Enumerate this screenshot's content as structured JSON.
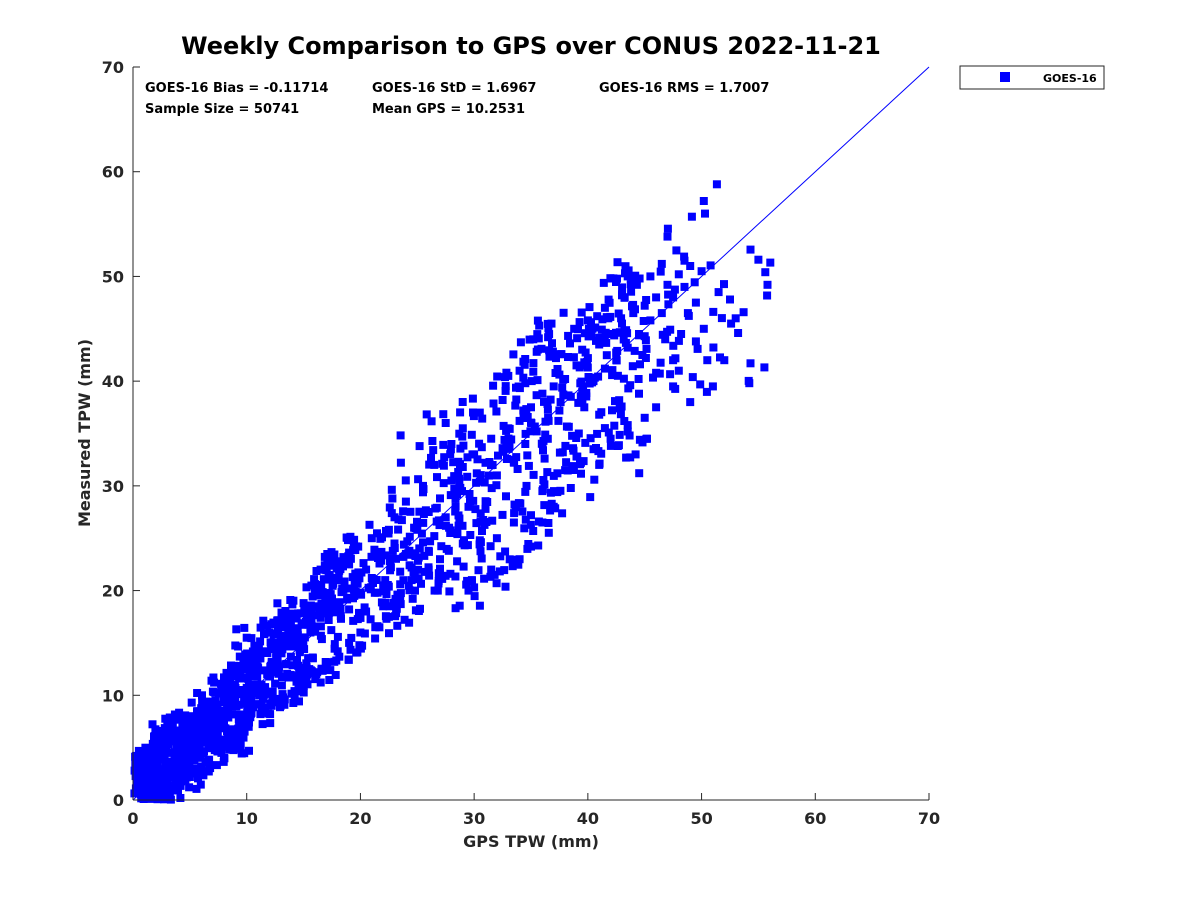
{
  "chart_data": {
    "type": "scatter",
    "title": "Weekly Comparison to GPS over CONUS 2022-11-21",
    "xlabel": "GPS TPW (mm)",
    "ylabel": "Measured TPW (mm)",
    "xlim": [
      0,
      70
    ],
    "ylim": [
      0,
      70
    ],
    "xticks": [
      "0",
      "10",
      "20",
      "30",
      "40",
      "50",
      "60",
      "70"
    ],
    "yticks": [
      "0",
      "10",
      "20",
      "30",
      "40",
      "50",
      "60",
      "70"
    ],
    "grid": false,
    "legend_position": "top-right-outside",
    "reference_line": {
      "name": "1:1 line",
      "x": [
        0,
        70
      ],
      "y": [
        0,
        70
      ],
      "color": "#0000ff"
    },
    "stats": {
      "bias": "GOES-16 Bias = -0.11714",
      "std": "GOES-16 StD = 1.6967",
      "rms": "GOES-16 RMS = 1.7007",
      "sample_size": "Sample Size = 50741",
      "mean_gps": "Mean GPS = 10.2531"
    },
    "series": [
      {
        "name": "GOES-16",
        "color": "#0000ff",
        "marker": "square",
        "points": [
          [
            0.2,
            3.5
          ],
          [
            0.5,
            1.2
          ],
          [
            0.8,
            2.0
          ],
          [
            1.0,
            0.4
          ],
          [
            1.2,
            1.5
          ],
          [
            1.5,
            3.0
          ],
          [
            1.8,
            2.2
          ],
          [
            2.0,
            0.8
          ],
          [
            2.2,
            4.0
          ],
          [
            2.5,
            2.5
          ],
          [
            2.8,
            1.8
          ],
          [
            3.0,
            3.2
          ],
          [
            3.3,
            4.5
          ],
          [
            3.6,
            2.9
          ],
          [
            4.0,
            3.8
          ],
          [
            4.2,
            5.5
          ],
          [
            4.5,
            4.2
          ],
          [
            4.8,
            3.5
          ],
          [
            5.0,
            5.0
          ],
          [
            5.3,
            6.2
          ],
          [
            5.5,
            4.8
          ],
          [
            5.8,
            5.6
          ],
          [
            6.0,
            6.8
          ],
          [
            6.3,
            5.9
          ],
          [
            6.6,
            7.2
          ],
          [
            7.0,
            6.5
          ],
          [
            7.3,
            7.8
          ],
          [
            7.6,
            8.4
          ],
          [
            8.0,
            7.5
          ],
          [
            8.3,
            9.0
          ],
          [
            8.7,
            8.2
          ],
          [
            9.0,
            9.6
          ],
          [
            9.4,
            10.5
          ],
          [
            9.8,
            9.2
          ],
          [
            10.2,
            11.0
          ],
          [
            10.5,
            10.3
          ],
          [
            11.0,
            12.6
          ],
          [
            11.3,
            10.8
          ],
          [
            11.8,
            12.0
          ],
          [
            12.2,
            13.2
          ],
          [
            12.6,
            12.4
          ],
          [
            13.0,
            14.5
          ],
          [
            13.5,
            13.0
          ],
          [
            14.0,
            15.2
          ],
          [
            14.3,
            16.4
          ],
          [
            14.8,
            14.6
          ],
          [
            15.2,
            17.0
          ],
          [
            15.6,
            16.0
          ],
          [
            16.0,
            18.5
          ],
          [
            16.5,
            17.4
          ],
          [
            17.0,
            19.5
          ],
          [
            17.5,
            18.8
          ],
          [
            18.0,
            21.0
          ],
          [
            18.4,
            20.2
          ],
          [
            19.0,
            22.5
          ],
          [
            19.5,
            20.8
          ],
          [
            20.0,
            19.8
          ],
          [
            20.5,
            22.0
          ],
          [
            21.0,
            21.2
          ],
          [
            21.5,
            23.4
          ],
          [
            22.0,
            20.5
          ],
          [
            22.6,
            22.8
          ],
          [
            23.0,
            24.5
          ],
          [
            23.5,
            21.8
          ],
          [
            24.0,
            23.5
          ],
          [
            24.5,
            22.2
          ],
          [
            25.0,
            25.8
          ],
          [
            25.5,
            24.6
          ],
          [
            26.0,
            27.5
          ],
          [
            26.5,
            25.2
          ],
          [
            27.0,
            28.8
          ],
          [
            27.5,
            27.0
          ],
          [
            28.0,
            30.5
          ],
          [
            28.5,
            29.2
          ],
          [
            29.0,
            31.8
          ],
          [
            29.5,
            28.0
          ],
          [
            30.0,
            33.0
          ],
          [
            30.5,
            30.4
          ],
          [
            31.0,
            32.2
          ],
          [
            31.5,
            34.5
          ],
          [
            32.0,
            31.0
          ],
          [
            32.5,
            33.6
          ],
          [
            33.0,
            35.5
          ],
          [
            33.5,
            32.5
          ],
          [
            34.0,
            36.2
          ],
          [
            34.5,
            34.0
          ],
          [
            35.0,
            37.5
          ],
          [
            35.5,
            35.2
          ],
          [
            36.0,
            38.8
          ],
          [
            36.5,
            36.5
          ],
          [
            37.0,
            39.5
          ],
          [
            37.5,
            37.2
          ],
          [
            38.0,
            40.2
          ],
          [
            38.5,
            38.5
          ],
          [
            39.0,
            41.5
          ],
          [
            39.5,
            39.0
          ],
          [
            40.0,
            42.2
          ],
          [
            40.5,
            40.0
          ],
          [
            41.0,
            43.5
          ],
          [
            41.5,
            41.2
          ],
          [
            42.0,
            44.5
          ],
          [
            42.5,
            42.0
          ],
          [
            43.0,
            45.5
          ],
          [
            43.5,
            43.2
          ],
          [
            44.0,
            46.5
          ],
          [
            44.5,
            44.5
          ],
          [
            45.0,
            47.2
          ],
          [
            45.5,
            45.8
          ],
          [
            46.0,
            48.0
          ],
          [
            46.5,
            46.5
          ],
          [
            47.0,
            49.2
          ],
          [
            47.5,
            48.0
          ],
          [
            48.0,
            50.2
          ],
          [
            48.5,
            49.0
          ],
          [
            49.0,
            51.0
          ],
          [
            49.5,
            47.5
          ],
          [
            50.0,
            50.5
          ],
          [
            50.2,
            57.2
          ],
          [
            50.3,
            56.0
          ],
          [
            47.0,
            53.8
          ],
          [
            55.0,
            51.6
          ],
          [
            55.6,
            50.4
          ],
          [
            55.8,
            49.2
          ],
          [
            54.3,
            41.7
          ],
          [
            54.2,
            39.8
          ],
          [
            52.6,
            45.5
          ],
          [
            52.5,
            47.8
          ],
          [
            51.0,
            39.5
          ],
          [
            49.0,
            38.0
          ],
          [
            25.2,
            33.8
          ],
          [
            27.5,
            36.0
          ],
          [
            30.0,
            20.3
          ],
          [
            29.5,
            20.0
          ],
          [
            35.0,
            24.2
          ],
          [
            34.0,
            23.0
          ],
          [
            31.5,
            22.0
          ],
          [
            28.5,
            22.8
          ],
          [
            22.0,
            18.5
          ],
          [
            20.5,
            18.0
          ],
          [
            14.5,
            11.8
          ],
          [
            15.5,
            12.5
          ],
          [
            10.0,
            15.5
          ],
          [
            9.0,
            5.5
          ],
          [
            8.5,
            6.0
          ],
          [
            7.5,
            4.8
          ],
          [
            6.0,
            3.2
          ],
          [
            5.0,
            2.2
          ],
          [
            4.0,
            1.5
          ],
          [
            3.0,
            0.6
          ],
          [
            2.0,
            0.2
          ],
          [
            1.0,
            2.8
          ],
          [
            1.5,
            0.6
          ],
          [
            2.5,
            6.6
          ],
          [
            3.5,
            7.0
          ],
          [
            4.5,
            7.6
          ],
          [
            6.5,
            9.4
          ],
          [
            8.0,
            10.8
          ],
          [
            9.5,
            12.8
          ],
          [
            12.0,
            16.0
          ],
          [
            13.5,
            17.6
          ],
          [
            16.5,
            22.0
          ],
          [
            18.5,
            23.2
          ],
          [
            19.0,
            18.2
          ],
          [
            21.5,
            19.8
          ],
          [
            23.5,
            20.6
          ],
          [
            24.5,
            21.0
          ],
          [
            26.0,
            23.8
          ],
          [
            27.8,
            26.0
          ],
          [
            29.0,
            24.5
          ],
          [
            31.0,
            27.8
          ],
          [
            32.8,
            29.0
          ],
          [
            34.6,
            30.0
          ],
          [
            36.2,
            32.6
          ],
          [
            37.8,
            33.2
          ],
          [
            39.2,
            35.0
          ],
          [
            41.0,
            36.8
          ],
          [
            42.8,
            37.4
          ],
          [
            44.5,
            38.8
          ],
          [
            46.0,
            40.8
          ],
          [
            47.5,
            42.0
          ],
          [
            48.2,
            44.5
          ],
          [
            49.5,
            43.8
          ],
          [
            44.0,
            49.5
          ],
          [
            45.5,
            50.0
          ],
          [
            46.5,
            51.2
          ],
          [
            48.5,
            51.5
          ],
          [
            43.0,
            48.2
          ],
          [
            41.5,
            47.0
          ],
          [
            40.0,
            45.8
          ],
          [
            39.5,
            43.0
          ],
          [
            36.5,
            44.2
          ],
          [
            35.5,
            42.8
          ],
          [
            34.0,
            41.0
          ],
          [
            33.0,
            40.5
          ],
          [
            32.5,
            38.2
          ],
          [
            30.5,
            37.0
          ],
          [
            29.0,
            35.5
          ],
          [
            28.0,
            34.0
          ],
          [
            26.5,
            32.0
          ],
          [
            25.5,
            30.0
          ],
          [
            24.0,
            28.5
          ],
          [
            23.0,
            27.0
          ],
          [
            22.5,
            25.8
          ],
          [
            21.0,
            25.0
          ],
          [
            19.8,
            24.2
          ],
          [
            18.0,
            22.8
          ],
          [
            17.2,
            21.5
          ],
          [
            16.0,
            20.2
          ],
          [
            15.0,
            18.8
          ],
          [
            14.0,
            17.8
          ],
          [
            13.0,
            16.5
          ],
          [
            12.5,
            15.0
          ],
          [
            11.5,
            14.2
          ],
          [
            10.8,
            13.5
          ],
          [
            10.0,
            12.8
          ],
          [
            9.2,
            11.8
          ],
          [
            8.8,
            11.0
          ],
          [
            7.8,
            10.2
          ],
          [
            7.0,
            9.2
          ],
          [
            6.2,
            8.2
          ],
          [
            5.6,
            7.6
          ],
          [
            4.8,
            6.8
          ],
          [
            4.0,
            6.2
          ],
          [
            3.2,
            5.6
          ],
          [
            2.6,
            5.0
          ],
          [
            1.8,
            4.6
          ],
          [
            1.2,
            4.2
          ],
          [
            0.8,
            3.8
          ],
          [
            0.4,
            2.6
          ],
          [
            0.3,
            1.0
          ],
          [
            38.0,
            31.5
          ],
          [
            39.0,
            32.8
          ],
          [
            40.5,
            33.5
          ],
          [
            42.0,
            34.5
          ],
          [
            43.5,
            35.8
          ],
          [
            45.0,
            36.5
          ],
          [
            46.0,
            37.5
          ],
          [
            47.5,
            39.5
          ],
          [
            48.0,
            41.0
          ],
          [
            50.5,
            42.0
          ],
          [
            37.0,
            28.0
          ],
          [
            36.0,
            29.5
          ],
          [
            35.0,
            27.2
          ],
          [
            33.5,
            26.5
          ],
          [
            32.0,
            25.0
          ],
          [
            30.5,
            24.8
          ],
          [
            28.5,
            25.5
          ],
          [
            27.0,
            23.0
          ],
          [
            26.0,
            22.0
          ],
          [
            24.8,
            20.0
          ],
          [
            23.5,
            19.0
          ],
          [
            22.5,
            17.5
          ],
          [
            21.5,
            16.6
          ],
          [
            20.0,
            16.0
          ],
          [
            19.0,
            15.0
          ],
          [
            18.0,
            14.2
          ],
          [
            17.0,
            13.0
          ],
          [
            16.2,
            12.2
          ],
          [
            15.0,
            11.2
          ],
          [
            14.2,
            10.4
          ],
          [
            13.2,
            9.8
          ],
          [
            12.2,
            9.0
          ],
          [
            11.2,
            8.2
          ],
          [
            10.2,
            7.4
          ],
          [
            9.4,
            6.8
          ],
          [
            8.6,
            6.2
          ],
          [
            7.8,
            5.6
          ],
          [
            7.0,
            5.0
          ],
          [
            6.2,
            4.4
          ],
          [
            5.4,
            3.8
          ],
          [
            4.6,
            3.0
          ],
          [
            3.8,
            2.4
          ],
          [
            3.0,
            1.8
          ],
          [
            2.2,
            1.2
          ],
          [
            1.6,
            0.9
          ],
          [
            0.9,
            0.5
          ],
          [
            43.5,
            50.0
          ],
          [
            42.0,
            49.8
          ],
          [
            41.8,
            46.0
          ],
          [
            40.2,
            44.5
          ],
          [
            38.8,
            45.0
          ],
          [
            37.2,
            42.2
          ],
          [
            36.8,
            45.5
          ],
          [
            35.2,
            44.0
          ],
          [
            34.5,
            39.8
          ],
          [
            44.8,
            42.5
          ],
          [
            46.8,
            44.0
          ],
          [
            48.8,
            46.5
          ],
          [
            50.2,
            45.0
          ],
          [
            51.5,
            48.5
          ],
          [
            52.0,
            42.0
          ],
          [
            53.0,
            46.0
          ],
          [
            45.2,
            34.5
          ],
          [
            44.2,
            33.0
          ],
          [
            41.0,
            32.0
          ],
          [
            38.5,
            29.8
          ],
          [
            36.0,
            26.5
          ],
          [
            31.8,
            21.5
          ],
          [
            29.8,
            21.0
          ],
          [
            26.8,
            20.0
          ]
        ]
      }
    ]
  }
}
